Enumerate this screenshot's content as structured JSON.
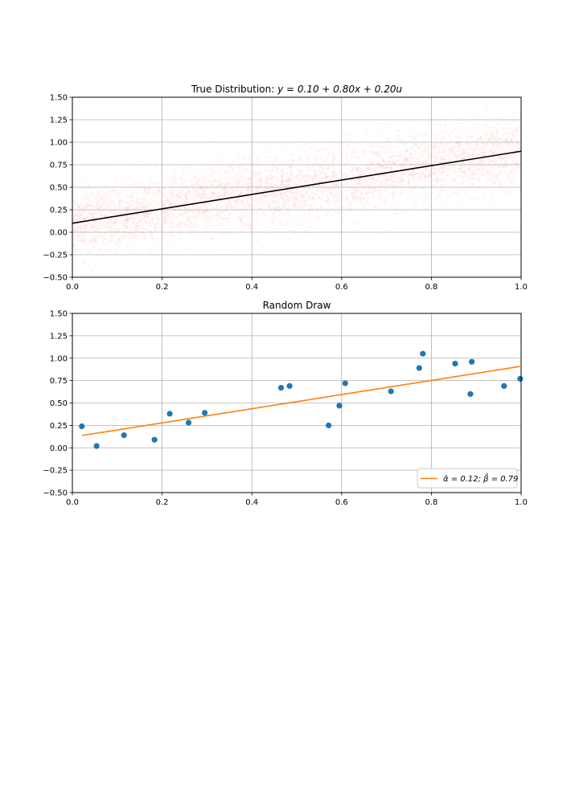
{
  "chart_data": [
    {
      "type": "scatter",
      "title_prefix": "True Distribution: ",
      "title_math": "y = 0.10 + 0.80x + 0.20u",
      "xlabel": "",
      "ylabel": "",
      "xlim": [
        0.0,
        1.0
      ],
      "ylim": [
        -0.5,
        1.5
      ],
      "xticks": [
        "0.0",
        "0.2",
        "0.4",
        "0.6",
        "0.8",
        "1.0"
      ],
      "yticks": [
        "−0.50",
        "−0.25",
        "0.00",
        "0.25",
        "0.50",
        "0.75",
        "1.00",
        "1.25",
        "1.50"
      ],
      "grid": true,
      "cloud": {
        "color": "#ff0000",
        "intercept": 0.1,
        "slope": 0.8,
        "noise_sd": 0.2
      },
      "line": {
        "color": "#000000",
        "x": [
          0.0,
          1.0
        ],
        "y": [
          0.1,
          0.9
        ]
      }
    },
    {
      "type": "scatter",
      "title": "Random Draw",
      "xlabel": "",
      "ylabel": "",
      "xlim": [
        0.0,
        1.0
      ],
      "ylim": [
        -0.5,
        1.5
      ],
      "xticks": [
        "0.0",
        "0.2",
        "0.4",
        "0.6",
        "0.8",
        "1.0"
      ],
      "yticks": [
        "−0.50",
        "−0.25",
        "0.00",
        "0.25",
        "0.50",
        "0.75",
        "1.00",
        "1.25",
        "1.50"
      ],
      "grid": true,
      "legend_position": "lower-right",
      "points": {
        "color": "#1f77b4",
        "x": [
          0.021,
          0.054,
          0.115,
          0.183,
          0.217,
          0.259,
          0.295,
          0.465,
          0.484,
          0.571,
          0.595,
          0.608,
          0.71,
          0.773,
          0.781,
          0.853,
          0.887,
          0.89,
          0.962,
          0.998
        ],
        "y": [
          0.24,
          0.02,
          0.14,
          0.09,
          0.38,
          0.28,
          0.39,
          0.67,
          0.69,
          0.25,
          0.47,
          0.72,
          0.63,
          0.89,
          1.05,
          0.94,
          0.6,
          0.96,
          0.69,
          0.77
        ]
      },
      "fit_line": {
        "color": "#ff7f0e",
        "label": "α̂ = 0.12; β̂ = 0.79",
        "alpha_hat": 0.12,
        "beta_hat": 0.79,
        "x": [
          0.021,
          0.998
        ]
      }
    }
  ]
}
